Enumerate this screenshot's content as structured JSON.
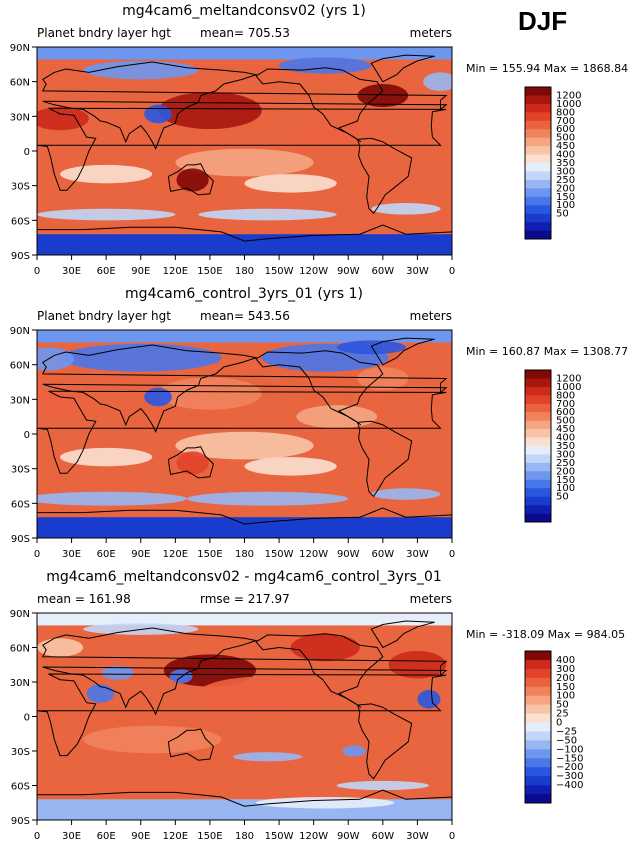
{
  "season": "DJF",
  "palettes": {
    "field": [
      "#0a0a8c",
      "#0f1fb0",
      "#1a3ccc",
      "#2a57e0",
      "#4a77ea",
      "#6e96ee",
      "#98b6f2",
      "#c2d6f7",
      "#e6eefb",
      "#fbe0d2",
      "#f8c4a8",
      "#f5a582",
      "#f1835c",
      "#ec6240",
      "#e2422a",
      "#cc2a1a",
      "#a8160d",
      "#800806"
    ],
    "diff": [
      "#0a0a8c",
      "#0f1fb0",
      "#1a3ccc",
      "#2a57e0",
      "#4a77ea",
      "#6e96ee",
      "#98b6f2",
      "#c2d6f7",
      "#e6eefb",
      "#fbe0d2",
      "#f8c4a8",
      "#f5a582",
      "#f1835c",
      "#ec6240",
      "#e2422a",
      "#cc2a1a",
      "#800806"
    ]
  },
  "ocean_color": "#e8653f",
  "panels": [
    {
      "title": "mg4cam6_meltandconsv02 (yrs 1)",
      "left_label": "Planet bndry layer hgt",
      "center_label": "mean= 705.53",
      "right_label": "meters",
      "minmax": "Min = 155.94 Max = 1868.84"
    },
    {
      "title": "mg4cam6_control_3yrs_01 (yrs 1)",
      "left_label": "Planet bndry layer hgt",
      "center_label": "mean= 543.56",
      "right_label": "meters",
      "minmax": "Min = 160.87 Max = 1308.77"
    },
    {
      "title": "mg4cam6_meltandconsv02 - mg4cam6_control_3yrs_01",
      "left_label": "mean = 161.98",
      "center_label": "rmse = 217.97",
      "right_label": "meters",
      "minmax": "Min = -318.09 Max = 984.05"
    }
  ],
  "chart_data": [
    {
      "type": "heatmap",
      "title": "mg4cam6_meltandconsv02 (yrs 1)",
      "variable": "Planet bndry layer hgt",
      "units": "meters",
      "mean": 705.53,
      "min": 155.94,
      "max": 1868.84,
      "x_ticks": [
        "0",
        "30E",
        "60E",
        "90E",
        "120E",
        "150E",
        "180",
        "150W",
        "120W",
        "90W",
        "60W",
        "30W",
        "0"
      ],
      "y_ticks": [
        "90N",
        "60N",
        "30N",
        "0",
        "30S",
        "60S",
        "90S"
      ],
      "xlim": [
        0,
        360
      ],
      "ylim": [
        -90,
        90
      ],
      "colorbar_levels": [
        "1200",
        "1000",
        "800",
        "700",
        "600",
        "500",
        "450",
        "400",
        "350",
        "300",
        "250",
        "200",
        "150",
        "100",
        "50"
      ]
    },
    {
      "type": "heatmap",
      "title": "mg4cam6_control_3yrs_01 (yrs 1)",
      "variable": "Planet bndry layer hgt",
      "units": "meters",
      "mean": 543.56,
      "min": 160.87,
      "max": 1308.77,
      "x_ticks": [
        "0",
        "30E",
        "60E",
        "90E",
        "120E",
        "150E",
        "180",
        "150W",
        "120W",
        "90W",
        "60W",
        "30W",
        "0"
      ],
      "y_ticks": [
        "90N",
        "60N",
        "30N",
        "0",
        "30S",
        "60S",
        "90S"
      ],
      "xlim": [
        0,
        360
      ],
      "ylim": [
        -90,
        90
      ],
      "colorbar_levels": [
        "1200",
        "1000",
        "800",
        "700",
        "600",
        "500",
        "450",
        "400",
        "350",
        "300",
        "250",
        "200",
        "150",
        "100",
        "50"
      ]
    },
    {
      "type": "heatmap",
      "title": "mg4cam6_meltandconsv02 - mg4cam6_control_3yrs_01",
      "units": "meters",
      "mean": 161.98,
      "rmse": 217.97,
      "min": -318.09,
      "max": 984.05,
      "x_ticks": [
        "0",
        "30E",
        "60E",
        "90E",
        "120E",
        "150E",
        "180",
        "150W",
        "120W",
        "90W",
        "60W",
        "30W",
        "0"
      ],
      "y_ticks": [
        "90N",
        "60N",
        "30N",
        "0",
        "30S",
        "60S",
        "90S"
      ],
      "xlim": [
        0,
        360
      ],
      "ylim": [
        -90,
        90
      ],
      "colorbar_levels": [
        "400",
        "300",
        "200",
        "150",
        "100",
        "50",
        "25",
        "0",
        "−25",
        "−50",
        "−100",
        "−150",
        "−200",
        "−300",
        "−400"
      ]
    }
  ]
}
